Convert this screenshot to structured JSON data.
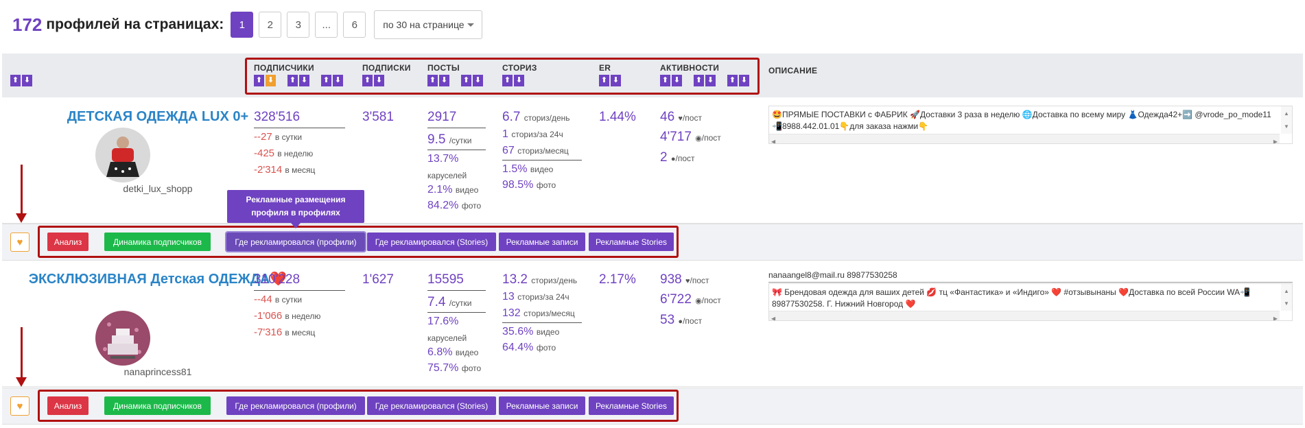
{
  "header": {
    "count": "172",
    "count_label": "профилей на страницах:",
    "pages": [
      "1",
      "2",
      "3",
      "...",
      "6"
    ],
    "per_page": "по 30 на странице"
  },
  "columns": {
    "followers": "ПОДПИСЧИКИ",
    "following": "ПОДПИСКИ",
    "posts": "ПОСТЫ",
    "stories": "СТОРИЗ",
    "er": "ER",
    "activity": "АКТИВНОСТИ",
    "description": "ОПИСАНИЕ"
  },
  "sort_up": "⬆",
  "sort_down": "⬇",
  "tooltip": "Рекламные размещения профиля в профилях",
  "actions": {
    "analysis": "Анализ",
    "dynamics": "Динамика подписчиков",
    "where_profiles": "Где рекламировался (профили)",
    "where_stories": "Где рекламировался (Stories)",
    "ad_posts": "Рекламные записи",
    "ad_stories": "Рекламные Stories"
  },
  "rows": [
    {
      "name": "ДЕТСКАЯ ОДЕЖДА LUX 0+",
      "username": "detki_lux_shopp",
      "followers": "328'516",
      "day": "--27",
      "week": "-425",
      "month": "-2'314",
      "following": "3'581",
      "posts": "2917",
      "posts_per_day": "9.5",
      "carousel_pct": "13.7%",
      "video_pct": "2.1%",
      "photo_pct": "84.2%",
      "stories_per_day": "6.7",
      "stories_24h": "1",
      "stories_month": "67",
      "stories_video": "1.5%",
      "stories_photo": "98.5%",
      "er": "1.44%",
      "likes": "46",
      "views": "4'717",
      "comments": "2",
      "email": "",
      "description": "🤩ПРЯМЫЕ ПОСТАВКИ с ФАБРИК 🚀Доставки 3 раза в неделю 🌐Доставка по всему миру 👗Одежда42+➡️ @vrode_po_mode11 📲8988.442.01.01👇для заказа нажми👇"
    },
    {
      "name": "ЭКСКЛЮЗИВНАЯ Детская ОДЕЖДА❤️",
      "username": "nanaprincess81",
      "followers": "310'228",
      "day": "--44",
      "week": "-1'066",
      "month": "-7'316",
      "following": "1'627",
      "posts": "15595",
      "posts_per_day": "7.4",
      "carousel_pct": "17.6%",
      "video_pct": "6.8%",
      "photo_pct": "75.7%",
      "stories_per_day": "13.2",
      "stories_24h": "13",
      "stories_month": "132",
      "stories_video": "35.6%",
      "stories_photo": "64.4%",
      "er": "2.17%",
      "likes": "938",
      "views": "6'722",
      "comments": "53",
      "email": "nanaangel8@mail.ru 89877530258",
      "description": "🎀 Брендовая одежда для ваших детей 💋 тц «Фантастика» и «Индиго» ❤️ #отзывынаны ❤️Доставка по всей России WA📲 89877530258. Г. Нижний Новгород ❤️"
    }
  ],
  "units": {
    "per_day": "в сутки",
    "per_week": "в неделю",
    "per_month": "в месяц",
    "per_day_short": "/сутки",
    "carousels": "каруселей",
    "video": "видео",
    "photo": "фото",
    "stories_day": "сториз/день",
    "stories_24h": "сториз/за 24ч",
    "stories_month": "сториз/месяц",
    "per_post": "/пост"
  },
  "colors": {
    "accent": "#6f42c1",
    "link": "#2a84c7",
    "negative": "#d9534f",
    "annotation": "#b01010",
    "favorite": "#f0a030"
  }
}
